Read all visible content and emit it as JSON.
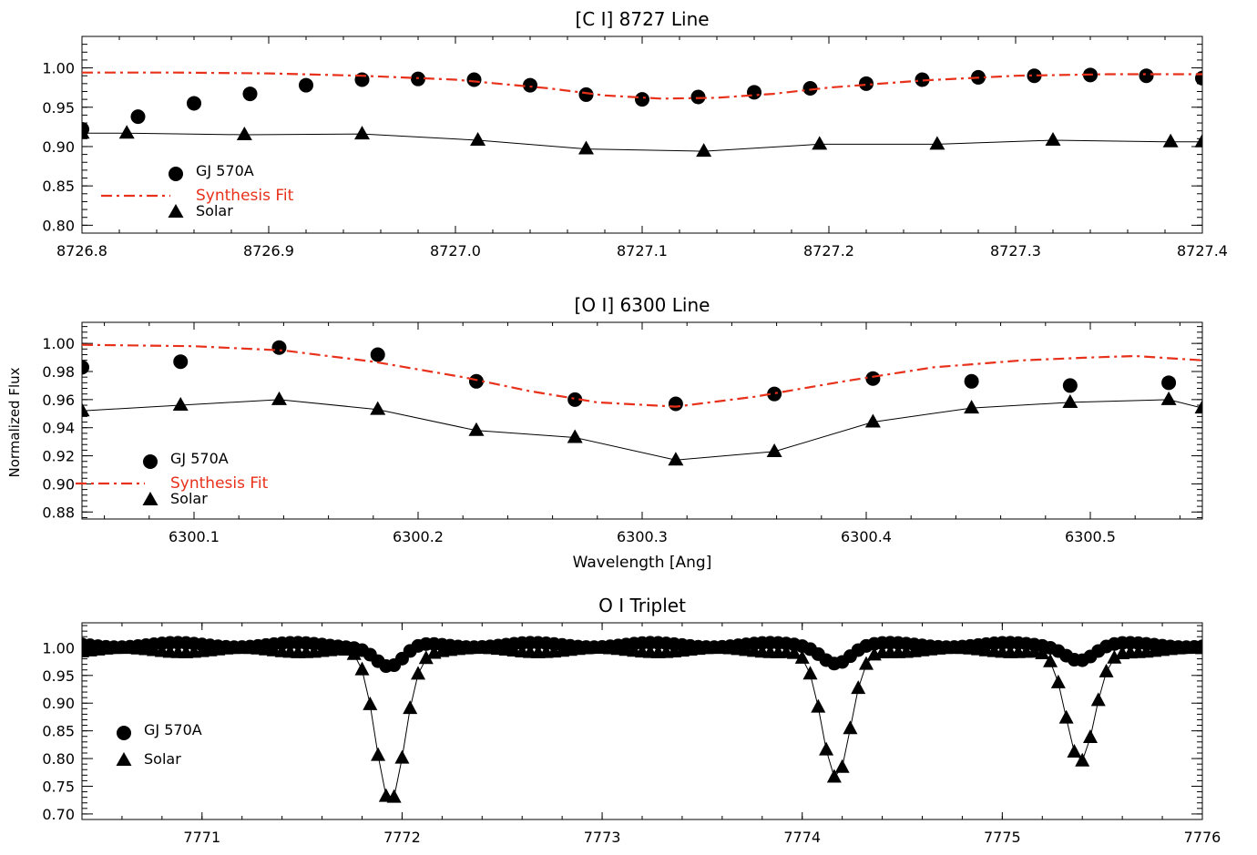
{
  "chart_data": [
    {
      "type": "scatter",
      "title": "[C I] 8727 Line",
      "xlabel": "",
      "ylabel": "",
      "xlim": [
        8726.8,
        8727.4
      ],
      "ylim": [
        0.79,
        1.04
      ],
      "xticks": [
        8726.8,
        8726.9,
        8727.0,
        8727.1,
        8727.2,
        8727.3,
        8727.4
      ],
      "xtick_labels": [
        "8726.8",
        "8726.9",
        "8727.0",
        "8727.1",
        "8727.2",
        "8727.3",
        "8727.4"
      ],
      "yticks": [
        0.8,
        0.85,
        0.9,
        0.95,
        1.0
      ],
      "ytick_labels": [
        "0.80",
        "0.85",
        "0.90",
        "0.95",
        "1.00"
      ],
      "legend_position": "bottom-left",
      "legend": [
        "GJ 570A",
        "Synthesis Fit",
        "Solar"
      ],
      "series": [
        {
          "name": "GJ 570A",
          "marker": "circle",
          "color": "#000000",
          "x": [
            8726.8,
            8726.83,
            8726.86,
            8726.89,
            8726.92,
            8726.95,
            8726.98,
            8727.01,
            8727.04,
            8727.07,
            8727.1,
            8727.13,
            8727.16,
            8727.19,
            8727.22,
            8727.25,
            8727.28,
            8727.31,
            8727.34,
            8727.37,
            8727.4
          ],
          "y": [
            0.922,
            0.938,
            0.955,
            0.967,
            0.978,
            0.985,
            0.986,
            0.985,
            0.978,
            0.966,
            0.96,
            0.963,
            0.969,
            0.974,
            0.98,
            0.985,
            0.988,
            0.99,
            0.991,
            0.99,
            0.987
          ]
        },
        {
          "name": "Synthesis Fit",
          "line": "dashdot",
          "color": "#e8311a",
          "x": [
            8726.8,
            8726.85,
            8726.9,
            8726.95,
            8727.0,
            8727.05,
            8727.08,
            8727.11,
            8727.14,
            8727.17,
            8727.2,
            8727.25,
            8727.3,
            8727.35,
            8727.4
          ],
          "y": [
            0.994,
            0.994,
            0.993,
            0.99,
            0.985,
            0.974,
            0.965,
            0.961,
            0.962,
            0.967,
            0.975,
            0.984,
            0.99,
            0.992,
            0.992
          ]
        },
        {
          "name": "Solar",
          "marker": "triangle",
          "line": "solid",
          "color": "#000000",
          "x": [
            8726.8,
            8726.824,
            8726.887,
            8726.95,
            8727.012,
            8727.07,
            8727.133,
            8727.195,
            8727.258,
            8727.32,
            8727.383,
            8727.4
          ],
          "y": [
            0.917,
            0.917,
            0.915,
            0.916,
            0.908,
            0.897,
            0.894,
            0.903,
            0.903,
            0.908,
            0.906,
            0.906
          ]
        }
      ]
    },
    {
      "type": "scatter",
      "title": "[O I] 6300 Line",
      "xlabel": "Wavelength [Ang]",
      "ylabel": "Normalized Flux",
      "xlim": [
        6300.05,
        6300.55
      ],
      "ylim": [
        0.875,
        1.015
      ],
      "xticks": [
        6300.1,
        6300.2,
        6300.3,
        6300.4,
        6300.5
      ],
      "xtick_labels": [
        "6300.1",
        "6300.2",
        "6300.3",
        "6300.4",
        "6300.5"
      ],
      "yticks": [
        0.88,
        0.9,
        0.92,
        0.94,
        0.96,
        0.98,
        1.0
      ],
      "ytick_labels": [
        "0.88",
        "0.90",
        "0.92",
        "0.94",
        "0.96",
        "0.98",
        "1.00"
      ],
      "legend_position": "bottom-left",
      "legend": [
        "GJ 570A",
        "Synthesis Fit",
        "Solar"
      ],
      "series": [
        {
          "name": "GJ 570A",
          "marker": "circle",
          "color": "#000000",
          "x": [
            6300.05,
            6300.094,
            6300.138,
            6300.182,
            6300.226,
            6300.27,
            6300.315,
            6300.359,
            6300.403,
            6300.447,
            6300.491,
            6300.535
          ],
          "y": [
            0.983,
            0.987,
            0.997,
            0.992,
            0.973,
            0.96,
            0.957,
            0.964,
            0.975,
            0.973,
            0.97,
            0.972
          ]
        },
        {
          "name": "Synthesis Fit",
          "line": "dashdot",
          "color": "#e8311a",
          "x": [
            6300.05,
            6300.1,
            6300.14,
            6300.18,
            6300.22,
            6300.25,
            6300.28,
            6300.315,
            6300.35,
            6300.39,
            6300.43,
            6300.47,
            6300.5,
            6300.52,
            6300.55
          ],
          "y": [
            0.999,
            0.998,
            0.995,
            0.987,
            0.976,
            0.966,
            0.958,
            0.955,
            0.962,
            0.973,
            0.983,
            0.988,
            0.99,
            0.991,
            0.988
          ]
        },
        {
          "name": "Solar",
          "marker": "triangle",
          "line": "solid",
          "color": "#000000",
          "x": [
            6300.05,
            6300.094,
            6300.138,
            6300.182,
            6300.226,
            6300.27,
            6300.315,
            6300.359,
            6300.403,
            6300.447,
            6300.491,
            6300.535,
            6300.55
          ],
          "y": [
            0.952,
            0.956,
            0.96,
            0.953,
            0.938,
            0.933,
            0.917,
            0.923,
            0.944,
            0.954,
            0.958,
            0.96,
            0.954
          ]
        }
      ]
    },
    {
      "type": "scatter",
      "title": "O I Triplet",
      "xlabel": "",
      "ylabel": "",
      "xlim": [
        7770.4,
        7776.0
      ],
      "ylim": [
        0.69,
        1.045
      ],
      "xticks": [
        7771,
        7772,
        7773,
        7774,
        7775,
        7776
      ],
      "xtick_labels": [
        "7771",
        "7772",
        "7773",
        "7774",
        "7775",
        "7776"
      ],
      "yticks": [
        0.7,
        0.75,
        0.8,
        0.85,
        0.9,
        0.95,
        1.0
      ],
      "ytick_labels": [
        "0.70",
        "0.75",
        "0.80",
        "0.85",
        "0.90",
        "0.95",
        "1.00"
      ],
      "legend_position": "left",
      "legend": [
        "GJ 570A",
        "Solar"
      ],
      "lines": [
        {
          "name": "GJ 570A",
          "center": 7771.94,
          "depth": 0.04,
          "width": 0.1
        },
        {
          "name": "GJ 570A",
          "center": 7774.17,
          "depth": 0.03,
          "width": 0.1
        },
        {
          "name": "GJ 570A",
          "center": 7775.39,
          "depth": 0.025,
          "width": 0.1
        },
        {
          "name": "Solar",
          "center": 7771.94,
          "depth": 0.275,
          "width": 0.1
        },
        {
          "name": "Solar",
          "center": 7774.17,
          "depth": 0.235,
          "width": 0.1
        },
        {
          "name": "Solar",
          "center": 7775.39,
          "depth": 0.205,
          "width": 0.1
        }
      ],
      "series": [
        {
          "name": "GJ 570A",
          "marker": "circle",
          "color": "#000000",
          "continuum": 1.005,
          "x_start": 7770.4,
          "x_step": 0.04,
          "count": 141
        },
        {
          "name": "Solar",
          "marker": "triangle",
          "line": "solid",
          "color": "#000000",
          "continuum": 0.995,
          "x_start": 7770.4,
          "x_step": 0.04,
          "count": 141
        }
      ]
    }
  ]
}
